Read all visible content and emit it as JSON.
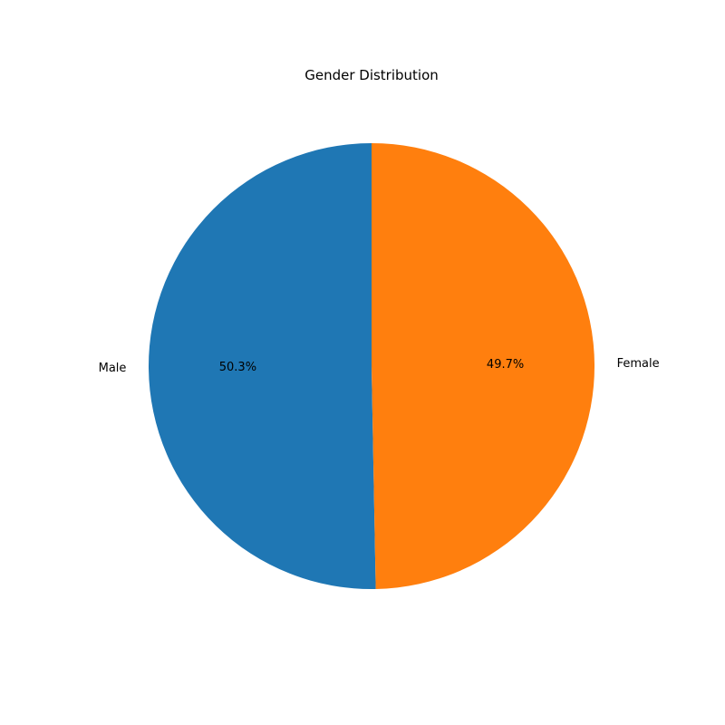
{
  "chart_data": {
    "type": "pie",
    "title": "Gender Distribution",
    "labels": [
      "Male",
      "Female"
    ],
    "values": [
      50.3,
      49.7
    ],
    "percent_labels": [
      "50.3%",
      "49.7%"
    ],
    "colors": [
      "#1f77b4",
      "#ff7f0e"
    ],
    "start_angle_deg": 90,
    "direction": "counterclockwise"
  }
}
